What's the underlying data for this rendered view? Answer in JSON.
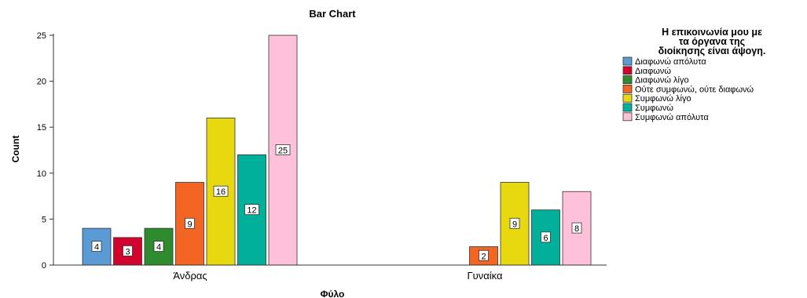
{
  "chart_data": {
    "type": "bar",
    "title": "Bar Chart",
    "xlabel": "Φύλο",
    "ylabel": "Count",
    "categories": [
      "Άνδρας",
      "Γυναίκα"
    ],
    "ylim": [
      0,
      25
    ],
    "yticks": [
      0,
      5,
      10,
      15,
      20,
      25
    ],
    "grid": false,
    "legend": {
      "title_lines": [
        "Η επικοινωνία μου με",
        "τα όργανα της",
        "διοίκησης είναι άψογη."
      ],
      "placement": "right"
    },
    "series": [
      {
        "name": "Διαφωνώ απόλυτα",
        "color": "#5b9bd5",
        "values": [
          4,
          null
        ]
      },
      {
        "name": "Διαφωνώ",
        "color": "#d2042d",
        "values": [
          3,
          null
        ]
      },
      {
        "name": "Διαφωνώ λίγο",
        "color": "#2e8b2e",
        "values": [
          4,
          null
        ]
      },
      {
        "name": "Ούτε συμφωνώ, ούτε διαφωνώ",
        "color": "#f26522",
        "values": [
          9,
          2
        ]
      },
      {
        "name": "Συμφωνώ λίγο",
        "color": "#e8d80f",
        "values": [
          16,
          9
        ]
      },
      {
        "name": "Συμφωνώ",
        "color": "#00b09b",
        "values": [
          12,
          6
        ]
      },
      {
        "name": "Συμφωνώ απόλυτα",
        "color": "#ffc0d9",
        "values": [
          25,
          8
        ]
      }
    ]
  }
}
